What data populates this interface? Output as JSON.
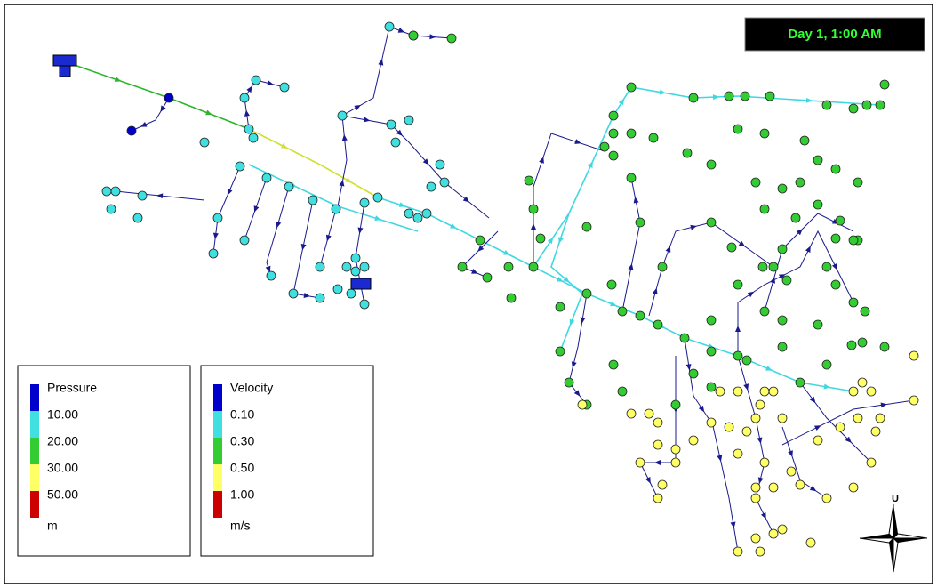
{
  "time_label": "Day 1, 1:00 AM",
  "legends": [
    {
      "title": "Pressure",
      "levels": [
        "10.00",
        "20.00",
        "30.00",
        "50.00"
      ],
      "unit": "m"
    },
    {
      "title": "Velocity",
      "levels": [
        "0.10",
        "0.30",
        "0.50",
        "1.00"
      ],
      "unit": "m/s"
    }
  ],
  "compass_label": "U"
}
